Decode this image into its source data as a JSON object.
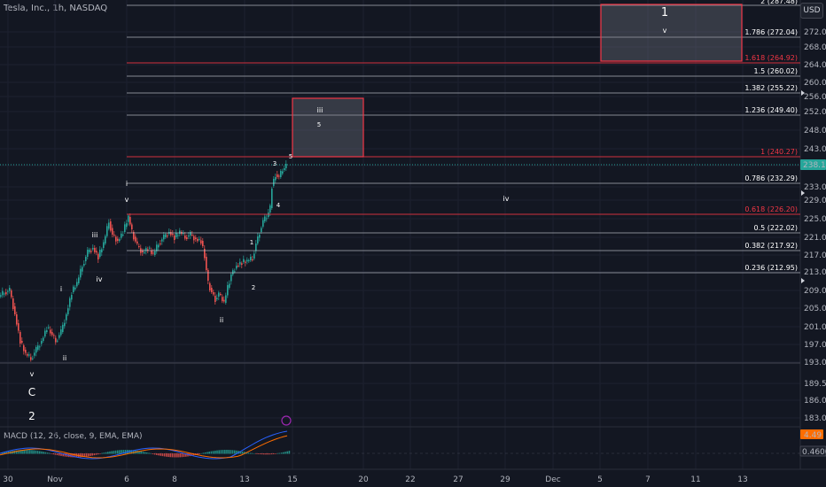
{
  "header": {
    "title": "Tesla, Inc., 1h, NASDAQ",
    "currency_button": "USD"
  },
  "price_axis": {
    "ticks": [
      "272.00",
      "268.00",
      "264.00",
      "260.00",
      "256.00",
      "252.00",
      "248.00",
      "243.00",
      "238.00",
      "233.00",
      "229.00",
      "225.00",
      "221.00",
      "217.00",
      "213.00",
      "209.00",
      "205.00",
      "201.00",
      "197.00",
      "193.00",
      "189.50",
      "186.00",
      "183.00"
    ],
    "current_price": "238.15",
    "macd_value": "4.49",
    "signal_value": "0.4600"
  },
  "time_axis": {
    "ticks": [
      "30",
      "Nov",
      "6",
      "8",
      "13",
      "15",
      "20",
      "22",
      "27",
      "29",
      "Dec",
      "5",
      "7",
      "11",
      "13"
    ]
  },
  "fib_levels": [
    {
      "label": "1.786 (272.04)",
      "color": "white"
    },
    {
      "label": "1.618 (264.92)",
      "color": "red"
    },
    {
      "label": "1.5 (260.02)",
      "color": "white"
    },
    {
      "label": "1.382 (255.22)",
      "color": "white"
    },
    {
      "label": "1.236 (249.40)",
      "color": "white"
    },
    {
      "label": "1 (240.27)",
      "color": "red"
    },
    {
      "label": "0.786 (232.29)",
      "color": "white"
    },
    {
      "label": "0.618 (226.20)",
      "color": "red"
    },
    {
      "label": "0.5 (222.02)",
      "color": "white"
    },
    {
      "label": "0.382 (217.92)",
      "color": "white"
    },
    {
      "label": "0.236 (212.95)",
      "color": "white"
    }
  ],
  "fib_top_partial": "2 (287.48)",
  "wave_labels": {
    "C": "C",
    "two_big": "2",
    "v_low": "v",
    "ii_low": "ii",
    "i_mid": "i",
    "iv_mid": "iv",
    "iii_mid": "iii",
    "i_top": "i",
    "v_top": "v",
    "ii_dip": "ii",
    "w1": "1",
    "w2": "2",
    "w3": "3",
    "w4": "4",
    "w5": "5",
    "iii_box": "iii",
    "iv_proj": "iv",
    "v_box": "v",
    "one_box": "1"
  },
  "indicator": {
    "macd_label": "MACD (12, 26, close, 9, EMA, EMA)"
  },
  "colors": {
    "background": "#131722",
    "up": "#26a69a",
    "down": "#ef5350",
    "fib_red": "#f23645",
    "macd": "#2962ff",
    "signal": "#ff6d00"
  }
}
